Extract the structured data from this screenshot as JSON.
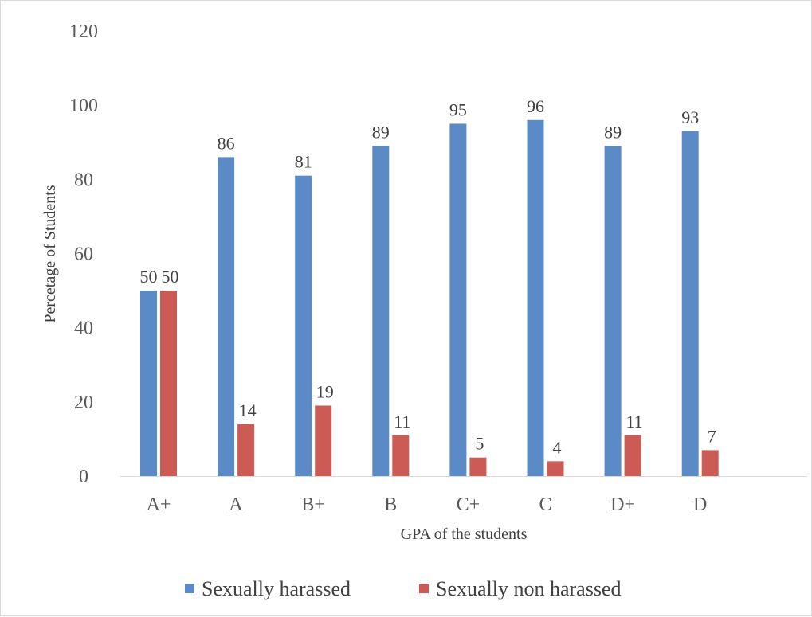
{
  "chart_data": {
    "type": "bar",
    "categories": [
      "A+",
      "A",
      "B+",
      "B",
      "C+",
      "C",
      "D+",
      "D"
    ],
    "series": [
      {
        "name": "Sexually harassed",
        "color": "#5b8bc6",
        "values": [
          50,
          86,
          81,
          89,
          95,
          96,
          89,
          93
        ]
      },
      {
        "name": "Sexually non harassed",
        "color": "#cc5b56",
        "values": [
          50,
          14,
          19,
          11,
          5,
          4,
          11,
          7
        ]
      }
    ],
    "xlabel": "GPA  of the students",
    "ylabel": "Percetage of  Students",
    "ylim": [
      0,
      120
    ],
    "yticks": [
      0,
      20,
      40,
      60,
      80,
      100,
      120
    ],
    "grid": false,
    "legend_position": "bottom",
    "axis_color": "#d9d9d9"
  }
}
